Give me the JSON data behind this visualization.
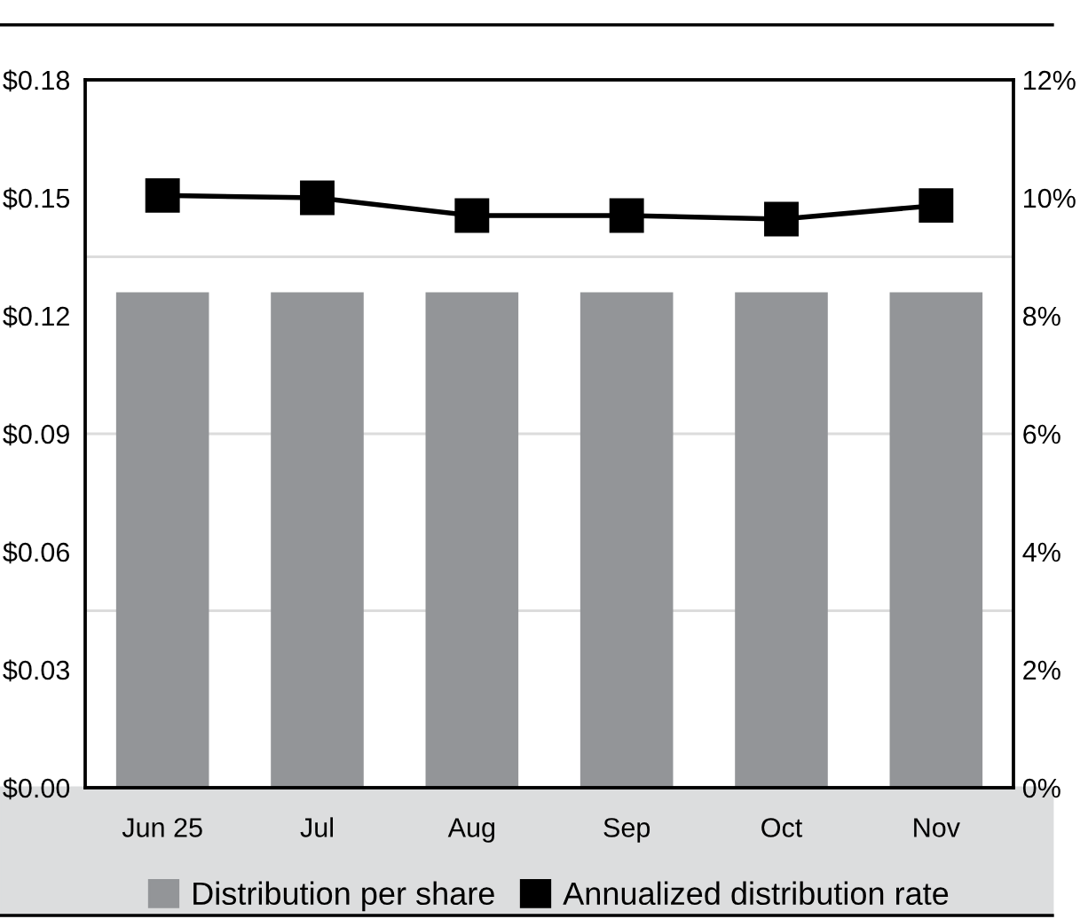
{
  "chart_data": {
    "type": "bar",
    "categories": [
      "Jun 25",
      "Jul",
      "Aug",
      "Sep",
      "Oct",
      "Nov"
    ],
    "series": [
      {
        "name": "Distribution per share",
        "color": "#939598",
        "values": [
          0.126,
          0.126,
          0.126,
          0.126,
          0.126,
          0.126
        ]
      },
      {
        "name": "Annualized distribution rate",
        "type": "line",
        "axis": "y2",
        "color": "#000000",
        "marker": "square",
        "values": [
          10.04,
          10.0,
          9.7,
          9.7,
          9.64,
          9.87
        ]
      }
    ],
    "ylim": [
      0,
      0.18
    ],
    "yticks": [
      {
        "value": 0,
        "label": "$0.00"
      },
      {
        "value": 0.03,
        "label": "$0.03"
      },
      {
        "value": 0.06,
        "label": "$0.06"
      },
      {
        "value": 0.09,
        "label": "$0.09"
      },
      {
        "value": 0.12,
        "label": "$0.12"
      },
      {
        "value": 0.15,
        "label": "$0.15"
      },
      {
        "value": 0.18,
        "label": "$0.18"
      }
    ],
    "y2lim": [
      0,
      12
    ],
    "y2ticks": [
      {
        "value": 0,
        "label": "0%"
      },
      {
        "value": 2,
        "label": "2%"
      },
      {
        "value": 4,
        "label": "4%"
      },
      {
        "value": 6,
        "label": "6%"
      },
      {
        "value": 8,
        "label": "8%"
      },
      {
        "value": 10,
        "label": "10%"
      },
      {
        "value": 12,
        "label": "12%"
      }
    ],
    "ref_lines": [
      {
        "axis": "y",
        "value": 0.045,
        "color": "#dcdcdc"
      },
      {
        "axis": "y",
        "value": 0.09,
        "color": "#dcdcdc"
      },
      {
        "axis": "y",
        "value": 0.135,
        "color": "#dcdcdc"
      }
    ],
    "legend": "bottom",
    "grid": false
  }
}
